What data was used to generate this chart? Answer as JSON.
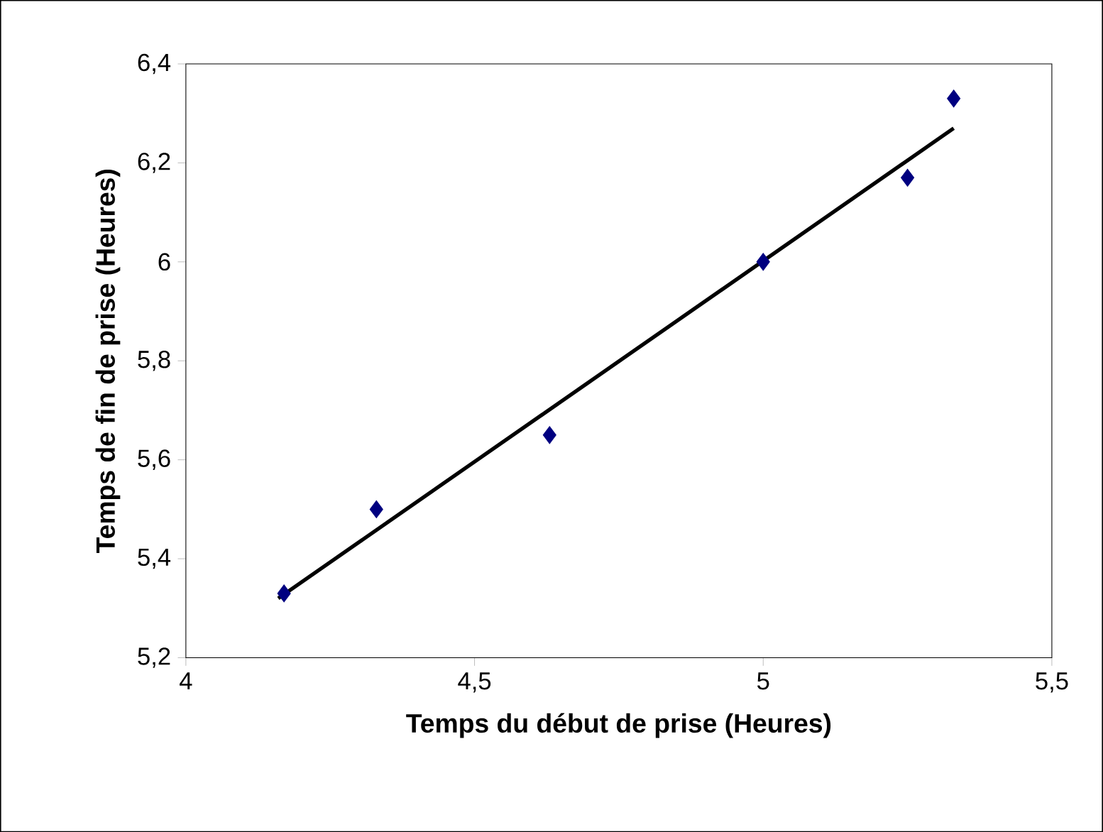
{
  "chart_data": {
    "type": "scatter",
    "xlabel": "Temps du début de prise (Heures)",
    "ylabel": "Temps de fin de prise (Heures)",
    "series": [
      {
        "color": "#000080",
        "marker": "diamond",
        "x": [
          4.17,
          4.33,
          4.63,
          5.0,
          5.25,
          5.33
        ],
        "values": [
          5.33,
          5.5,
          5.65,
          6.0,
          6.17,
          6.33
        ]
      },
      {
        "type": "line",
        "color": "#000000",
        "marker": "none",
        "line_style": "solid",
        "x": [
          4.16,
          5.33
        ],
        "values": [
          5.32,
          6.27
        ]
      }
    ],
    "xlim": [
      4,
      5.5
    ],
    "xticks": [
      {
        "value": 4,
        "label": "4"
      },
      {
        "value": 4.5,
        "label": "4,5"
      },
      {
        "value": 5,
        "label": "5"
      },
      {
        "value": 5.5,
        "label": "5,5"
      }
    ],
    "ylim": [
      5.2,
      6.4
    ],
    "yticks": [
      {
        "value": 5.2,
        "label": "5,2"
      },
      {
        "value": 5.4,
        "label": "5,4"
      },
      {
        "value": 5.6,
        "label": "5,6"
      },
      {
        "value": 5.8,
        "label": "5,8"
      },
      {
        "value": 6,
        "label": "6"
      },
      {
        "value": 6.2,
        "label": "6,2"
      },
      {
        "value": 6.4,
        "label": "6,4"
      }
    ],
    "grid": false
  }
}
